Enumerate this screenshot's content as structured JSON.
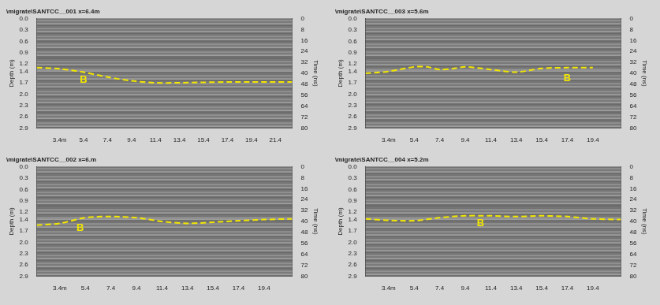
{
  "chart_data": [
    {
      "type": "line",
      "title": "\\migrate\\SANTCC__001 x=6.4m",
      "y_label": "Depth (m)",
      "y2_label": "Time (ns)",
      "grid": false,
      "xlim": [
        1.5,
        22.8
      ],
      "xticks": [
        {
          "value": 3.4,
          "label": "3.4m"
        },
        5.4,
        7.4,
        9.4,
        11.4,
        13.4,
        15.4,
        17.4,
        19.4,
        21.4
      ],
      "ylim": [
        0,
        2.9
      ],
      "yticks": [
        {
          "value": 0,
          "label": "0.0"
        },
        0.3,
        0.6,
        0.9,
        1.2,
        1.4,
        1.7,
        {
          "value": 2,
          "label": "2.0"
        },
        2.3,
        2.6,
        2.9
      ],
      "y2lim": [
        0,
        80
      ],
      "y2ticks": [
        0,
        8,
        16,
        24,
        32,
        40,
        48,
        56,
        64,
        72,
        80
      ],
      "series": [
        {
          "color": "#f2e600",
          "line_style": "dashed",
          "x": [
            1.5,
            3.4,
            5.4,
            7.4,
            9.4,
            11.4,
            13.4,
            15.4,
            17.4,
            19.4,
            21.4,
            22.8
          ],
          "values": [
            1.3,
            1.33,
            1.42,
            1.55,
            1.65,
            1.7,
            1.7,
            1.69,
            1.68,
            1.68,
            1.68,
            1.68
          ]
        }
      ],
      "annotations": [
        {
          "text": "B",
          "x": 5.4,
          "y": 1.62
        }
      ]
    },
    {
      "type": "line",
      "title": "\\migrate\\SANTCC__003 x=5.6m",
      "y_label": "Depth (m)",
      "y2_label": "Time (ns)",
      "grid": false,
      "xlim": [
        1.6,
        21.6
      ],
      "xticks": [
        {
          "value": 3.4,
          "label": "3.4m"
        },
        5.4,
        7.4,
        9.4,
        11.4,
        13.4,
        15.4,
        17.4,
        19.4
      ],
      "ylim": [
        0,
        2.9
      ],
      "yticks": [
        {
          "value": 0,
          "label": "0.0"
        },
        0.3,
        0.6,
        0.9,
        1.2,
        1.4,
        1.7,
        {
          "value": 2,
          "label": "2.0"
        },
        2.3,
        2.6,
        2.9
      ],
      "y2lim": [
        0,
        80
      ],
      "y2ticks": [
        0,
        8,
        16,
        24,
        32,
        40,
        48,
        56,
        64,
        72,
        80
      ],
      "series": [
        {
          "color": "#f2e600",
          "line_style": "dashed",
          "x": [
            1.6,
            3.4,
            5.4,
            6.4,
            7.4,
            8.4,
            9.4,
            11.4,
            13.4,
            15.4,
            17.4,
            19.4
          ],
          "values": [
            1.45,
            1.4,
            1.28,
            1.28,
            1.35,
            1.33,
            1.28,
            1.35,
            1.42,
            1.32,
            1.3,
            1.3
          ]
        }
      ],
      "annotations": [
        {
          "text": "B",
          "x": 17.4,
          "y": 1.58
        }
      ]
    },
    {
      "type": "line",
      "title": "\\migrate\\SANTCC__002 x=6.m",
      "y_label": "Depth (m)",
      "y2_label": "Time (ns)",
      "grid": false,
      "xlim": [
        1.6,
        21.6
      ],
      "xticks": [
        {
          "value": 3.4,
          "label": "3.4m"
        },
        5.4,
        7.4,
        9.4,
        11.4,
        13.4,
        15.4,
        17.4,
        19.4
      ],
      "ylim": [
        0,
        2.9
      ],
      "yticks": [
        {
          "value": 0,
          "label": "0.0"
        },
        0.3,
        0.6,
        0.9,
        1.2,
        1.4,
        1.7,
        {
          "value": 2,
          "label": "2.0"
        },
        2.3,
        2.6,
        2.9
      ],
      "y2lim": [
        0,
        80
      ],
      "y2ticks": [
        0,
        8,
        16,
        24,
        32,
        40,
        48,
        56,
        64,
        72,
        80
      ],
      "series": [
        {
          "color": "#f2e600",
          "line_style": "dashed",
          "x": [
            1.6,
            3.4,
            5.4,
            7.4,
            9.4,
            11.4,
            13.4,
            15.4,
            17.4,
            19.4,
            21.6
          ],
          "values": [
            1.55,
            1.5,
            1.35,
            1.32,
            1.35,
            1.45,
            1.5,
            1.47,
            1.43,
            1.4,
            1.38
          ]
        }
      ],
      "annotations": [
        {
          "text": "B",
          "x": 5.0,
          "y": 1.62
        }
      ]
    },
    {
      "type": "line",
      "title": "\\migrate\\SANTCC__004 x=5.2m",
      "y_label": "Depth (m)",
      "y2_label": "Time (ns)",
      "grid": false,
      "xlim": [
        1.6,
        21.6
      ],
      "xticks": [
        {
          "value": 3.4,
          "label": "3.4m"
        },
        5.4,
        7.4,
        9.4,
        11.4,
        13.4,
        15.4,
        17.4,
        19.4
      ],
      "ylim": [
        0,
        2.9
      ],
      "yticks": [
        {
          "value": 0,
          "label": "0.0"
        },
        0.3,
        0.6,
        0.9,
        1.2,
        1.4,
        1.7,
        {
          "value": 2,
          "label": "2.0"
        },
        2.3,
        2.6,
        2.9
      ],
      "y2lim": [
        0,
        80
      ],
      "y2ticks": [
        0,
        8,
        16,
        24,
        32,
        40,
        48,
        56,
        64,
        72,
        80
      ],
      "series": [
        {
          "color": "#f2e600",
          "line_style": "dashed",
          "x": [
            1.6,
            3.4,
            5.4,
            7.4,
            9.4,
            11.4,
            13.4,
            15.4,
            17.4,
            19.4,
            21.6
          ],
          "values": [
            1.38,
            1.42,
            1.43,
            1.35,
            1.3,
            1.3,
            1.32,
            1.3,
            1.32,
            1.38,
            1.4
          ]
        }
      ],
      "annotations": [
        {
          "text": "B",
          "x": 10.6,
          "y": 1.5
        }
      ]
    }
  ]
}
